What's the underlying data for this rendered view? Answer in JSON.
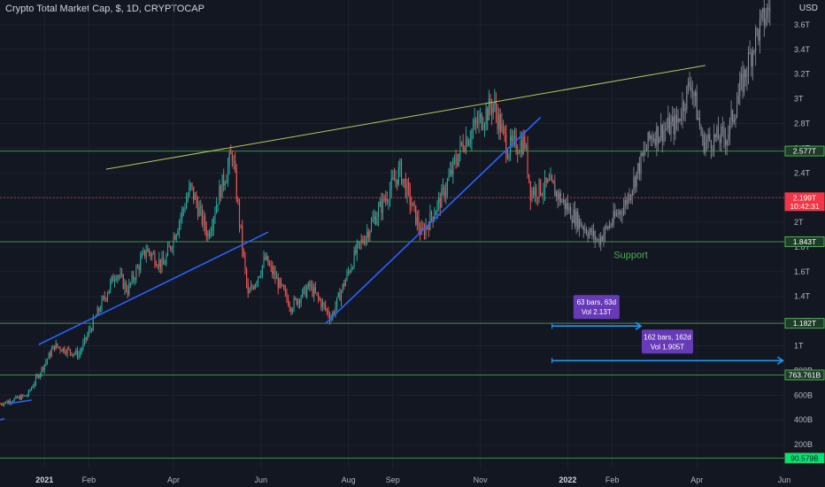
{
  "header": {
    "title": "Crypto Total Market Cap, $, 1D, CRYPTOCAP",
    "currency": "USD"
  },
  "colors": {
    "background": "#131722",
    "up": "#26a69a",
    "down": "#ef5350",
    "projection": "#8a8d96",
    "level_line": "#4caf50",
    "red_line": "#b23a3a",
    "trend_blue": "#2962ff",
    "trend_yellow": "#b7c95a",
    "measure_blue": "#2196f3",
    "measure_box": "#673ab7"
  },
  "chart_data": {
    "type": "candlestick",
    "title": "Crypto Total Market Cap, $, 1D, CRYPTOCAP",
    "y_axis": {
      "unit": "USD",
      "min": 0,
      "max": 3800000000000,
      "ticks": [
        {
          "value": 200000000000,
          "label": "200B"
        },
        {
          "value": 400000000000,
          "label": "400B"
        },
        {
          "value": 600000000000,
          "label": "600B"
        },
        {
          "value": 800000000000,
          "label": "800B"
        },
        {
          "value": 1000000000000,
          "label": "1T"
        },
        {
          "value": 1200000000000,
          "label": "1.2T"
        },
        {
          "value": 1400000000000,
          "label": "1.4T"
        },
        {
          "value": 1600000000000,
          "label": "1.6T"
        },
        {
          "value": 1800000000000,
          "label": "1.8T"
        },
        {
          "value": 2000000000000,
          "label": "2T"
        },
        {
          "value": 2200000000000,
          "label": "2.2T"
        },
        {
          "value": 2400000000000,
          "label": "2.4T"
        },
        {
          "value": 2600000000000,
          "label": "2.6T"
        },
        {
          "value": 2800000000000,
          "label": "2.8T"
        },
        {
          "value": 3000000000000,
          "label": "3T"
        },
        {
          "value": 3200000000000,
          "label": "3.2T"
        },
        {
          "value": 3400000000000,
          "label": "3.4T"
        },
        {
          "value": 3600000000000,
          "label": "3.6T"
        }
      ]
    },
    "x_axis": {
      "start": "2020-12-01",
      "end": "2022-06-01",
      "ticks": [
        {
          "date": "2021-01-01",
          "label": "2021",
          "bold": true
        },
        {
          "date": "2021-02-01",
          "label": "Feb"
        },
        {
          "date": "2021-04-01",
          "label": "Apr"
        },
        {
          "date": "2021-06-01",
          "label": "Jun"
        },
        {
          "date": "2021-08-01",
          "label": "Aug"
        },
        {
          "date": "2021-09-01",
          "label": "Sep"
        },
        {
          "date": "2021-11-01",
          "label": "Nov"
        },
        {
          "date": "2022-01-01",
          "label": "2022",
          "bold": true
        },
        {
          "date": "2022-02-01",
          "label": "Feb"
        },
        {
          "date": "2022-04-01",
          "label": "Apr"
        },
        {
          "date": "2022-06-01",
          "label": "Jun"
        }
      ]
    },
    "price_path": [
      [
        "2020-12-01",
        530000000000
      ],
      [
        "2020-12-20",
        600000000000
      ],
      [
        "2021-01-08",
        1000000000000
      ],
      [
        "2021-01-25",
        930000000000
      ],
      [
        "2021-02-20",
        1600000000000
      ],
      [
        "2021-02-28",
        1450000000000
      ],
      [
        "2021-03-13",
        1780000000000
      ],
      [
        "2021-03-25",
        1650000000000
      ],
      [
        "2021-04-13",
        2280000000000
      ],
      [
        "2021-04-25",
        1900000000000
      ],
      [
        "2021-05-02",
        2200000000000
      ],
      [
        "2021-05-12",
        2560000000000
      ],
      [
        "2021-05-19",
        1800000000000
      ],
      [
        "2021-05-23",
        1400000000000
      ],
      [
        "2021-06-04",
        1700000000000
      ],
      [
        "2021-06-22",
        1320000000000
      ],
      [
        "2021-07-05",
        1480000000000
      ],
      [
        "2021-07-20",
        1230000000000
      ],
      [
        "2021-08-06",
        1750000000000
      ],
      [
        "2021-08-20",
        2050000000000
      ],
      [
        "2021-09-06",
        2420000000000
      ],
      [
        "2021-09-21",
        1900000000000
      ],
      [
        "2021-10-05",
        2200000000000
      ],
      [
        "2021-10-20",
        2650000000000
      ],
      [
        "2021-11-10",
        2960000000000
      ],
      [
        "2021-11-20",
        2600000000000
      ],
      [
        "2021-12-02",
        2650000000000
      ],
      [
        "2021-12-06",
        2250000000000
      ],
      [
        "2021-12-20",
        2300000000000
      ],
      [
        "2022-01-05",
        2050000000000
      ],
      [
        "2022-01-22",
        1850000000000
      ],
      [
        "2022-02-10",
        2150000000000
      ],
      [
        "2022-02-28",
        2700000000000
      ],
      [
        "2022-03-18",
        2800000000000
      ],
      [
        "2022-03-28",
        3150000000000
      ],
      [
        "2022-04-05",
        2650000000000
      ],
      [
        "2022-04-22",
        2700000000000
      ],
      [
        "2022-05-12",
        3500000000000
      ],
      [
        "2022-05-22",
        3750000000000
      ]
    ],
    "actual_until": "2021-12-22",
    "horizontal_levels": [
      {
        "value": 2577000000000,
        "label": "2.577T",
        "style": "green"
      },
      {
        "value": 2199000000000,
        "label": "2.199T",
        "sublabel": "10:42:31",
        "style": "red"
      },
      {
        "value": 1843000000000,
        "label": "1.843T",
        "style": "green"
      },
      {
        "value": 1182000000000,
        "label": "1.182T",
        "style": "green"
      },
      {
        "value": 763761000000,
        "label": "763.761B",
        "style": "green"
      },
      {
        "value": 90579000000,
        "label": "90.579B",
        "style": "green-filled"
      }
    ],
    "trendlines": [
      {
        "color": "trend_blue",
        "from": [
          "2020-12-06",
          530000000000
        ],
        "to": [
          "2020-12-23",
          560000000000
        ]
      },
      {
        "color": "trend_blue",
        "from": [
          "2020-12-01",
          400000000000
        ],
        "to": [
          "2020-12-04",
          410000000000
        ]
      },
      {
        "color": "trend_blue",
        "from": [
          "2020-12-28",
          1010000000000
        ],
        "to": [
          "2021-06-06",
          1920000000000
        ]
      },
      {
        "color": "trend_blue",
        "from": [
          "2021-07-16",
          1180000000000
        ],
        "to": [
          "2021-12-13",
          2850000000000
        ]
      },
      {
        "color": "trend_yellow",
        "from": [
          "2021-02-13",
          2430000000000
        ],
        "to": [
          "2022-04-07",
          3270000000000
        ]
      }
    ],
    "annotations": [
      {
        "text": "Support",
        "at": [
          "2022-02-02",
          1740000000000
        ]
      }
    ],
    "measurements": [
      {
        "line1": "63 bars, 63d",
        "line2": "Vol 2.13T",
        "from": [
          "2021-12-21",
          1160000000000
        ],
        "to": [
          "2022-02-21",
          1160000000000
        ]
      },
      {
        "line1": "162 bars, 162d",
        "line2": "Vol 1.905T",
        "from": [
          "2021-12-21",
          880000000000
        ],
        "to": [
          "2022-05-31",
          880000000000
        ]
      }
    ]
  }
}
